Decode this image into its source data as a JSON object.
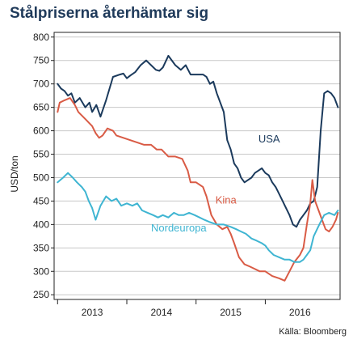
{
  "title": "Stålpriserna återhämtar sig",
  "source": "Källa: Bloomberg",
  "chart_data": {
    "type": "line",
    "ylabel": "USD/ton",
    "xlabel": "",
    "ylim": [
      240,
      810
    ],
    "xlim": [
      2012.45,
      2016.58
    ],
    "yticks": [
      250,
      300,
      350,
      400,
      450,
      500,
      550,
      600,
      650,
      700,
      750,
      800
    ],
    "xtick_labels": [
      {
        "label": "2013",
        "pos": 2013.0
      },
      {
        "label": "2014",
        "pos": 2014.0
      },
      {
        "label": "2015",
        "pos": 2015.0
      },
      {
        "label": "2016",
        "pos": 2016.0
      }
    ],
    "xtick_marks": [
      2012.5,
      2013.5,
      2014.5,
      2015.5
    ],
    "grid": true,
    "legend": "inline labels",
    "series": [
      {
        "name": "USA",
        "color": "#1b3a5c",
        "x": [
          2012.5,
          2012.55,
          2012.6,
          2012.65,
          2012.7,
          2012.75,
          2012.82,
          2012.9,
          2012.96,
          2013.0,
          2013.06,
          2013.12,
          2013.2,
          2013.3,
          2013.4,
          2013.45,
          2013.5,
          2013.55,
          2013.62,
          2013.7,
          2013.78,
          2013.85,
          2013.92,
          2013.97,
          2014.02,
          2014.1,
          2014.2,
          2014.28,
          2014.35,
          2014.42,
          2014.5,
          2014.6,
          2014.65,
          2014.7,
          2014.75,
          2014.8,
          2014.85,
          2014.9,
          2014.95,
          2015.0,
          2015.05,
          2015.1,
          2015.15,
          2015.2,
          2015.25,
          2015.3,
          2015.35,
          2015.4,
          2015.45,
          2015.5,
          2015.55,
          2015.6,
          2015.65,
          2015.7,
          2015.75,
          2015.8,
          2015.85,
          2015.9,
          2015.95,
          2016.0,
          2016.05,
          2016.1,
          2016.15,
          2016.2,
          2016.25,
          2016.3,
          2016.35,
          2016.4,
          2016.45,
          2016.5,
          2016.55
        ],
        "y": [
          700,
          690,
          685,
          675,
          680,
          660,
          670,
          650,
          660,
          640,
          655,
          630,
          665,
          715,
          720,
          722,
          712,
          718,
          725,
          740,
          750,
          740,
          730,
          728,
          735,
          760,
          740,
          730,
          740,
          720,
          720,
          720,
          715,
          700,
          705,
          680,
          660,
          640,
          580,
          560,
          530,
          520,
          500,
          490,
          495,
          500,
          510,
          515,
          520,
          510,
          505,
          490,
          480,
          465,
          450,
          435,
          420,
          400,
          395,
          410,
          420,
          430,
          445,
          450,
          480,
          600,
          680,
          685,
          680,
          670,
          650
        ]
      },
      {
        "name": "Kina",
        "color": "#d95b45",
        "x": [
          2012.5,
          2012.53,
          2012.6,
          2012.68,
          2012.75,
          2012.8,
          2012.9,
          2013.0,
          2013.05,
          2013.1,
          2013.15,
          2013.22,
          2013.3,
          2013.35,
          2013.45,
          2013.55,
          2013.65,
          2013.75,
          2013.85,
          2013.93,
          2014.0,
          2014.1,
          2014.2,
          2014.3,
          2014.38,
          2014.42,
          2014.5,
          2014.6,
          2014.65,
          2014.72,
          2014.8,
          2014.88,
          2014.95,
          2015.0,
          2015.05,
          2015.12,
          2015.2,
          2015.28,
          2015.35,
          2015.42,
          2015.5,
          2015.6,
          2015.7,
          2015.78,
          2015.85,
          2015.92,
          2016.0,
          2016.05,
          2016.1,
          2016.15,
          2016.18,
          2016.22,
          2016.27,
          2016.32,
          2016.37,
          2016.42,
          2016.47,
          2016.52,
          2016.55
        ],
        "y": [
          640,
          660,
          665,
          670,
          655,
          640,
          625,
          610,
          595,
          585,
          590,
          605,
          600,
          590,
          585,
          580,
          575,
          570,
          570,
          560,
          560,
          545,
          545,
          540,
          515,
          490,
          490,
          480,
          460,
          420,
          400,
          390,
          395,
          380,
          360,
          330,
          315,
          310,
          305,
          300,
          300,
          290,
          285,
          280,
          300,
          320,
          335,
          350,
          400,
          445,
          495,
          450,
          430,
          410,
          390,
          385,
          395,
          410,
          425
        ]
      },
      {
        "name": "Nordeuropa",
        "color": "#3fb5d2",
        "x": [
          2012.5,
          2012.58,
          2012.65,
          2012.72,
          2012.78,
          2012.85,
          2012.9,
          2012.95,
          2013.0,
          2013.05,
          2013.12,
          2013.2,
          2013.28,
          2013.35,
          2013.42,
          2013.5,
          2013.58,
          2013.65,
          2013.72,
          2013.8,
          2013.88,
          2013.95,
          2014.02,
          2014.1,
          2014.18,
          2014.25,
          2014.32,
          2014.4,
          2014.48,
          2014.55,
          2014.62,
          2014.7,
          2014.8,
          2014.9,
          2015.0,
          2015.08,
          2015.15,
          2015.22,
          2015.3,
          2015.38,
          2015.45,
          2015.5,
          2015.55,
          2015.62,
          2015.7,
          2015.78,
          2015.85,
          2015.92,
          2016.0,
          2016.05,
          2016.1,
          2016.15,
          2016.2,
          2016.28,
          2016.35,
          2016.42,
          2016.5,
          2016.55
        ],
        "y": [
          490,
          500,
          510,
          500,
          490,
          480,
          470,
          450,
          435,
          410,
          440,
          460,
          450,
          455,
          440,
          445,
          440,
          445,
          430,
          425,
          420,
          415,
          420,
          415,
          425,
          420,
          420,
          425,
          420,
          415,
          410,
          405,
          400,
          400,
          395,
          390,
          385,
          380,
          370,
          365,
          360,
          355,
          345,
          335,
          330,
          325,
          325,
          320,
          320,
          325,
          335,
          345,
          375,
          400,
          420,
          425,
          420,
          430
        ]
      }
    ],
    "annotations": [
      {
        "text": "USA",
        "x": 2015.4,
        "y": 575,
        "color": "#1b3a5c"
      },
      {
        "text": "Kina",
        "x": 2014.78,
        "y": 445,
        "color": "#d95b45"
      },
      {
        "text": "Nordeuropa",
        "x": 2013.85,
        "y": 385,
        "color": "#3fb5d2"
      }
    ]
  }
}
